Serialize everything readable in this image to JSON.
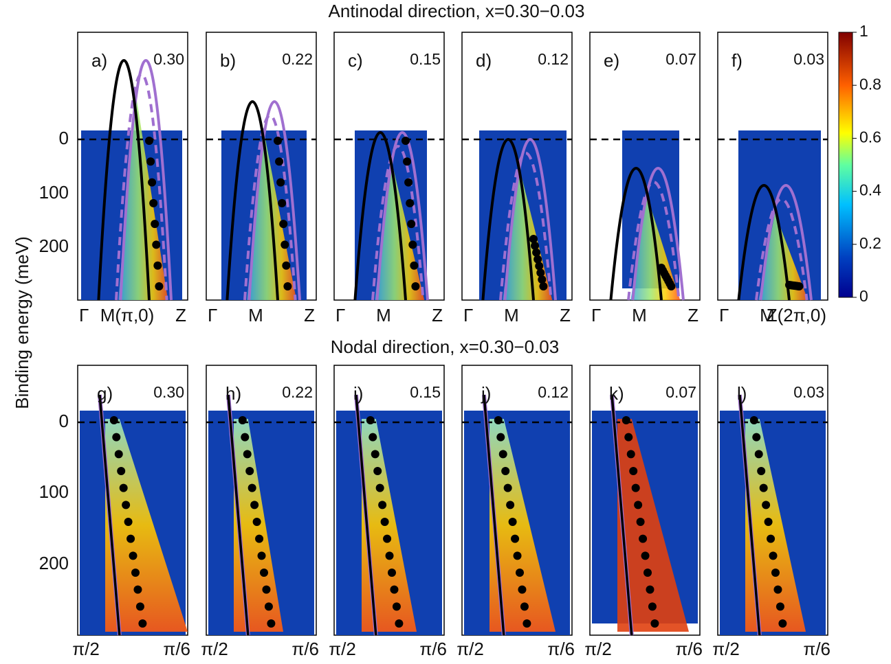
{
  "top_title": "Antinodal direction, x=0.30−0.03",
  "bottom_title": "Nodal direction, x=0.30−0.03",
  "y_label": "Binding energy (meV)",
  "y_ticks_top": [
    "0",
    "100",
    "200"
  ],
  "y_ticks_bottom": [
    "0",
    "100",
    "200"
  ],
  "colorbar_ticks": [
    "1",
    "0.8",
    "0.6",
    "0.4",
    "0.2",
    "0"
  ],
  "top_panels": [
    {
      "label": "a)",
      "doping": "0.30",
      "x_ticks": [
        "Γ",
        "M(π,0)",
        "Z"
      ]
    },
    {
      "label": "b)",
      "doping": "0.22",
      "x_ticks": [
        "Γ",
        "M",
        "Z"
      ]
    },
    {
      "label": "c)",
      "doping": "0.15",
      "x_ticks": [
        "Γ",
        "M",
        "Z"
      ]
    },
    {
      "label": "d)",
      "doping": "0.12",
      "x_ticks": [
        "Γ",
        "M",
        "Z"
      ]
    },
    {
      "label": "e)",
      "doping": "0.07",
      "x_ticks": [
        "Γ",
        "M",
        "Z"
      ]
    },
    {
      "label": "f)",
      "doping": "0.03",
      "x_ticks": [
        "Γ",
        "M",
        "Z(2π,0)"
      ]
    }
  ],
  "bottom_panels": [
    {
      "label": "g)",
      "doping": "0.30",
      "x_ticks": [
        "π/2",
        "π/6"
      ]
    },
    {
      "label": "h)",
      "doping": "0.22",
      "x_ticks": [
        "π/2",
        "π/6"
      ]
    },
    {
      "label": "i)",
      "doping": "0.15",
      "x_ticks": [
        "π/2",
        "π/6"
      ]
    },
    {
      "label": "j)",
      "doping": "0.12",
      "x_ticks": [
        "π/2",
        "π/6"
      ]
    },
    {
      "label": "k)",
      "doping": "0.07",
      "x_ticks": [
        "π/2",
        "π/6"
      ]
    },
    {
      "label": "l)",
      "doping": "0.03",
      "x_ticks": [
        "π/2",
        "π/6"
      ]
    }
  ]
}
